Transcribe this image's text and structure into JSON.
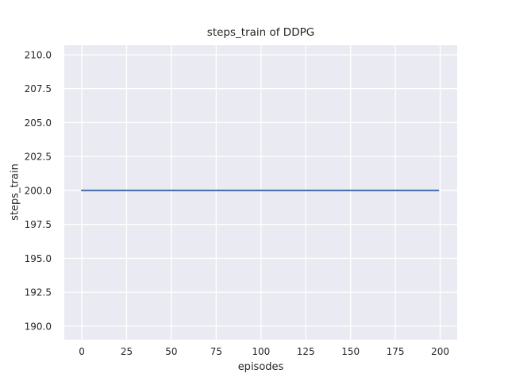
{
  "chart_data": {
    "type": "line",
    "title": "steps_train of DDPG",
    "xlabel": "episodes",
    "ylabel": "steps_train",
    "x_ticks": [
      0,
      25,
      50,
      75,
      100,
      125,
      150,
      175,
      200
    ],
    "x_tick_labels": [
      "0",
      "25",
      "50",
      "75",
      "100",
      "125",
      "150",
      "175",
      "200"
    ],
    "y_ticks": [
      190.0,
      192.5,
      195.0,
      197.5,
      200.0,
      202.5,
      205.0,
      207.5,
      210.0
    ],
    "y_tick_labels": [
      "190.0",
      "192.5",
      "195.0",
      "197.5",
      "200.0",
      "202.5",
      "205.0",
      "207.5",
      "210.0"
    ],
    "xlim": [
      -9.75,
      209.5
    ],
    "ylim": [
      189.0,
      210.7
    ],
    "grid": true,
    "legend": false,
    "series": [
      {
        "name": "steps_train",
        "x": [
          0,
          199
        ],
        "y": [
          200,
          200
        ],
        "color": "#4c72b0"
      }
    ],
    "style": {
      "fig_bg": "#ffffff",
      "plot_bg": "#eaeaf2",
      "grid_color": "#ffffff",
      "line_color": "#4c72b0",
      "text_color": "#262626"
    }
  }
}
